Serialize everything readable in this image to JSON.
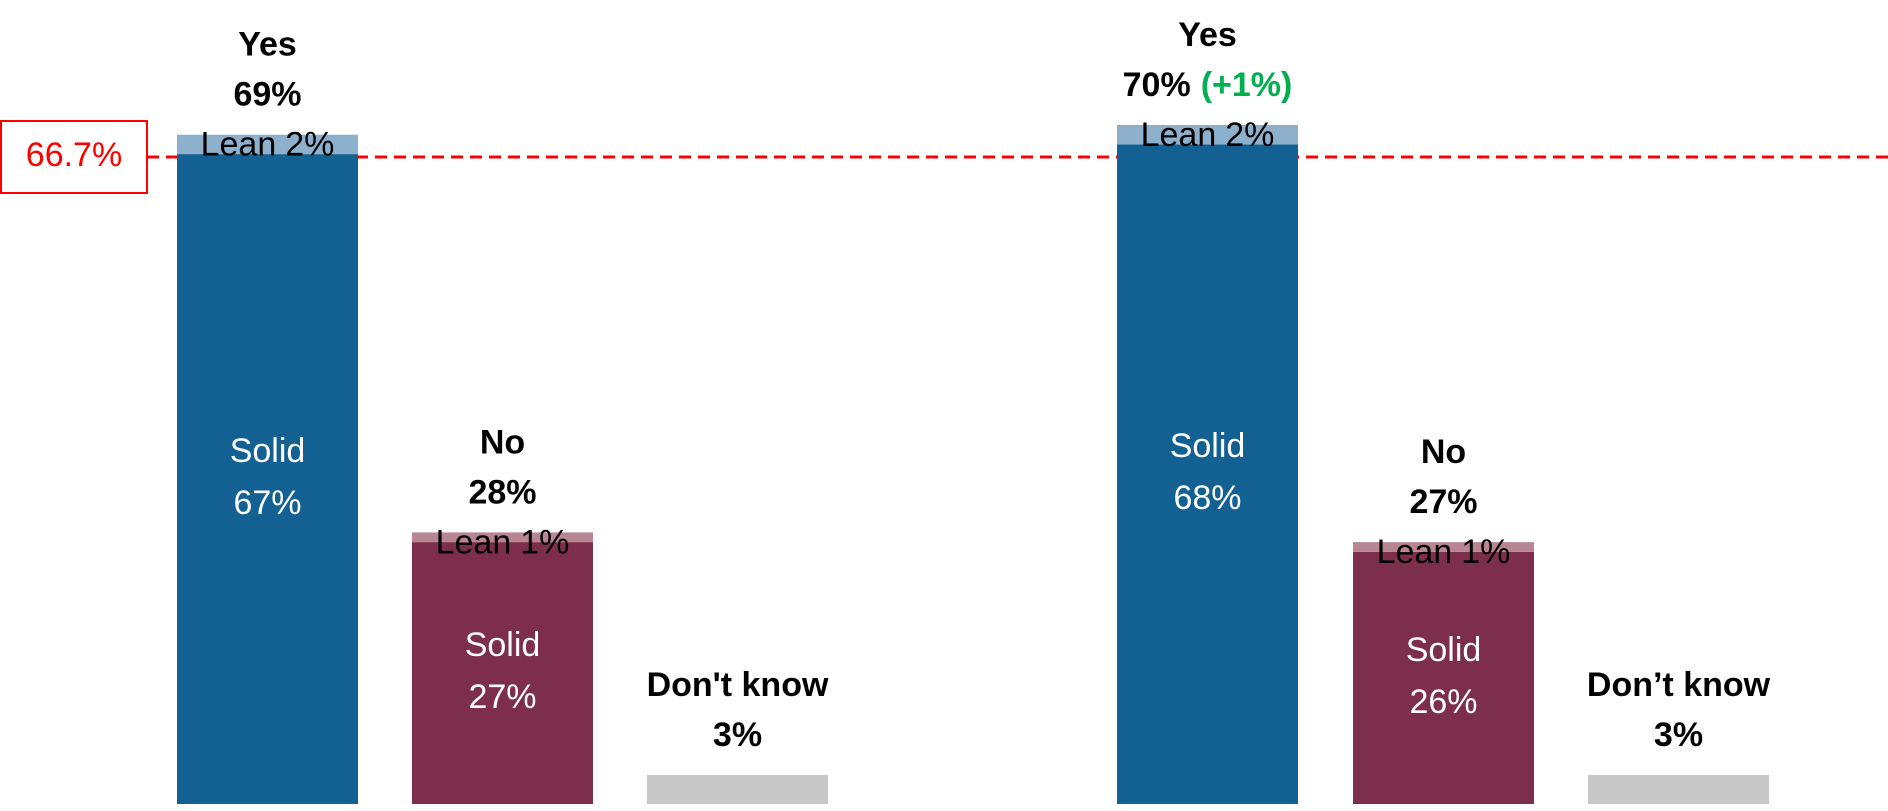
{
  "chart_data": [
    {
      "type": "bar",
      "categories": [
        "Yes",
        "No",
        "Don't know"
      ],
      "series": [
        {
          "name": "Solid",
          "values": [
            67,
            27,
            null
          ],
          "value_labels": [
            "67%",
            "27%",
            null
          ],
          "colors": [
            "#136193",
            "#7d2e4c",
            null
          ]
        },
        {
          "name": "Lean",
          "values": [
            2,
            1,
            null
          ],
          "value_labels": [
            "2%",
            "1%",
            null
          ],
          "colors": [
            "#8db0cc",
            "#b88594",
            null
          ]
        }
      ],
      "totals": [
        69,
        28,
        3
      ],
      "total_labels": [
        "69%",
        "28%",
        "3%"
      ],
      "total_color": "#c8c8c8",
      "reference_line": {
        "value": 66.7,
        "label": "66.7%",
        "color": "#ff0000"
      }
    },
    {
      "type": "bar",
      "categories": [
        "Yes",
        "No",
        "Don’t know"
      ],
      "series": [
        {
          "name": "Solid",
          "values": [
            68,
            26,
            null
          ],
          "value_labels": [
            "68%",
            "26%",
            null
          ],
          "colors": [
            "#136193",
            "#7d2e4c",
            null
          ]
        },
        {
          "name": "Lean",
          "values": [
            2,
            1,
            null
          ],
          "value_labels": [
            "2%",
            "1%",
            null
          ],
          "colors": [
            "#8db0cc",
            "#b88594",
            null
          ]
        }
      ],
      "totals": [
        70,
        27,
        3
      ],
      "total_labels": [
        "70%",
        "27%",
        "3%"
      ],
      "total_color": "#c8c8c8",
      "changes": [
        1,
        null,
        null
      ],
      "change_labels": [
        "(+1%)",
        null,
        null
      ],
      "change_color": "#00b050"
    }
  ]
}
